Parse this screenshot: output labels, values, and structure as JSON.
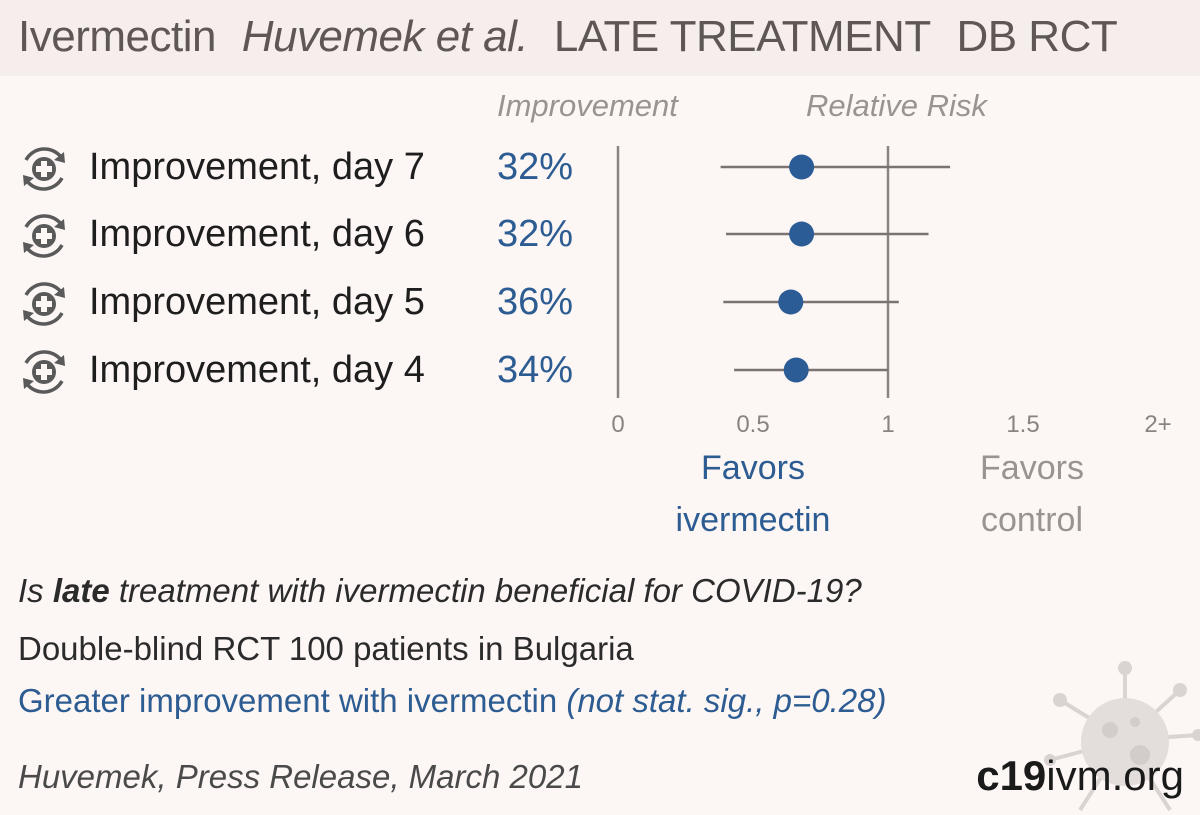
{
  "header": {
    "drug": "Ivermectin",
    "authors": "Huvemek et al.",
    "stage": "LATE TREATMENT",
    "design": "DB RCT"
  },
  "columns": {
    "improvement": "Improvement",
    "relative_risk": "Relative Risk"
  },
  "rows": [
    {
      "label": "Improvement, day 7",
      "value": "32%",
      "icon": "recovery-icon"
    },
    {
      "label": "Improvement, day 6",
      "value": "32%",
      "icon": "recovery-icon"
    },
    {
      "label": "Improvement, day 5",
      "value": "36%",
      "icon": "recovery-icon"
    },
    {
      "label": "Improvement, day 4",
      "value": "34%",
      "icon": "recovery-icon"
    }
  ],
  "chart_data": {
    "type": "forest",
    "x_ticks": [
      "0",
      "0.5",
      "1",
      "1.5",
      "2+"
    ],
    "x_range": [
      0,
      2
    ],
    "reference_line": 1,
    "points": [
      {
        "label": "Improvement, day 7",
        "rr": 0.68,
        "ci": [
          0.38,
          1.23
        ]
      },
      {
        "label": "Improvement, day 6",
        "rr": 0.68,
        "ci": [
          0.4,
          1.15
        ]
      },
      {
        "label": "Improvement, day 5",
        "rr": 0.64,
        "ci": [
          0.39,
          1.04
        ]
      },
      {
        "label": "Improvement, day 4",
        "rr": 0.66,
        "ci": [
          0.43,
          1.0
        ]
      }
    ],
    "favors_left": [
      "Favors",
      "ivermectin"
    ],
    "favors_right": [
      "Favors",
      "control"
    ],
    "colors": {
      "point": "#2b5c95",
      "favors_left": "#2c5c91",
      "favors_right": "#9a9391",
      "lines": "#7a7371"
    }
  },
  "footer": {
    "question_pre": "Is ",
    "question_bold": "late",
    "question_post": " treatment with ivermectin beneficial for COVID-19?",
    "design_line": "Double-blind RCT 100 patients in Bulgaria",
    "summary_main": "Greater improvement with ivermectin ",
    "summary_note": "(not stat. sig., p=0.28)",
    "citation": "Huvemek, Press Release, March 2021",
    "site_bold": "c19",
    "site_rest": "ivm.org"
  }
}
